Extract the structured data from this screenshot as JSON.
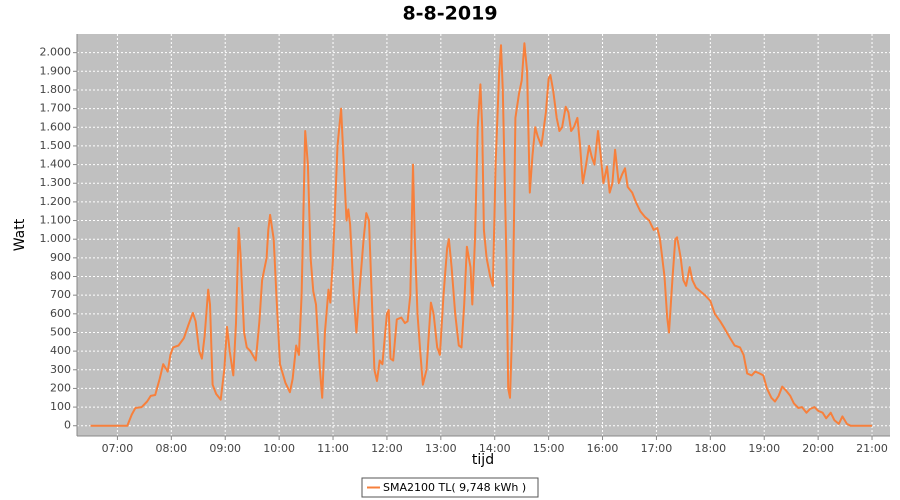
{
  "chart_data": {
    "type": "line",
    "title": "8-8-2019",
    "xlabel": "tijd",
    "ylabel": "Watt",
    "x": [
      "06:30",
      "07:11",
      "07:16",
      "07:20",
      "07:27",
      "07:33",
      "07:37",
      "07:42",
      "07:47",
      "07:51",
      "07:56",
      "07:59",
      "08:02",
      "08:08",
      "08:14",
      "08:19",
      "08:24",
      "08:27",
      "08:31",
      "08:34",
      "08:37",
      "08:41",
      "08:43",
      "08:46",
      "08:50",
      "08:55",
      "08:59",
      "09:02",
      "09:05",
      "09:09",
      "09:12",
      "09:15",
      "09:17",
      "09:21",
      "09:24",
      "09:28",
      "09:34",
      "09:38",
      "09:41",
      "09:46",
      "09:48",
      "09:50",
      "09:54",
      "09:57",
      "10:01",
      "10:07",
      "10:12",
      "10:15",
      "10:19",
      "10:22",
      "10:25",
      "10:29",
      "10:32",
      "10:35",
      "10:38",
      "10:41",
      "10:45",
      "10:48",
      "10:51",
      "10:55",
      "10:57",
      "11:00",
      "11:05",
      "11:09",
      "11:12",
      "11:15",
      "11:17",
      "11:19",
      "11:23",
      "11:26",
      "11:29",
      "11:34",
      "11:37",
      "11:40",
      "11:43",
      "11:46",
      "11:49",
      "11:52",
      "11:55",
      "12:00",
      "12:02",
      "12:04",
      "12:07",
      "12:11",
      "12:16",
      "12:20",
      "12:23",
      "12:26",
      "12:29",
      "12:31",
      "12:34",
      "12:37",
      "12:40",
      "12:44",
      "12:49",
      "12:52",
      "12:56",
      "12:59",
      "13:03",
      "13:07",
      "13:09",
      "13:12",
      "13:16",
      "13:20",
      "13:23",
      "13:26",
      "13:29",
      "13:33",
      "13:35",
      "13:38",
      "13:41",
      "13:44",
      "13:46",
      "13:48",
      "13:51",
      "13:55",
      "13:58",
      "14:01",
      "14:05",
      "14:07",
      "14:09",
      "14:13",
      "14:15",
      "14:17",
      "14:20",
      "14:23",
      "14:27",
      "14:30",
      "14:33",
      "14:36",
      "14:39",
      "14:42",
      "14:45",
      "14:48",
      "14:52",
      "14:57",
      "15:00",
      "15:02",
      "15:05",
      "15:09",
      "15:12",
      "15:15",
      "15:19",
      "15:22",
      "15:25",
      "15:28",
      "15:32",
      "15:35",
      "15:38",
      "15:41",
      "15:45",
      "15:48",
      "15:51",
      "15:55",
      "15:58",
      "16:01",
      "16:05",
      "16:08",
      "16:11",
      "16:14",
      "16:18",
      "16:22",
      "16:25",
      "16:28",
      "16:33",
      "16:37",
      "16:42",
      "16:47",
      "16:52",
      "16:57",
      "17:01",
      "17:04",
      "17:09",
      "17:12",
      "17:14",
      "17:18",
      "17:21",
      "17:23",
      "17:27",
      "17:30",
      "17:33",
      "17:37",
      "17:40",
      "17:44",
      "17:49",
      "17:54",
      "18:00",
      "18:05",
      "18:11",
      "18:16",
      "18:22",
      "18:27",
      "18:33",
      "18:37",
      "18:41",
      "18:46",
      "18:50",
      "18:55",
      "18:59",
      "19:03",
      "19:08",
      "19:12",
      "19:16",
      "19:20",
      "19:24",
      "19:29",
      "19:33",
      "19:38",
      "19:42",
      "19:47",
      "19:51",
      "19:56",
      "20:00",
      "20:05",
      "20:09",
      "20:14",
      "20:18",
      "20:23",
      "20:27",
      "20:32",
      "20:36",
      "21:00"
    ],
    "series": [
      {
        "name": "SMA2100 TL( 9,748 kWh )",
        "color": "#f7803c",
        "values": [
          0,
          0,
          60,
          95,
          100,
          130,
          160,
          165,
          250,
          330,
          290,
          380,
          420,
          430,
          470,
          540,
          605,
          560,
          400,
          360,
          480,
          730,
          650,
          220,
          170,
          140,
          300,
          530,
          400,
          270,
          550,
          1060,
          920,
          500,
          420,
          400,
          350,
          560,
          780,
          900,
          1050,
          1130,
          1000,
          700,
          330,
          230,
          180,
          250,
          430,
          380,
          700,
          1580,
          1400,
          900,
          720,
          650,
          320,
          150,
          500,
          730,
          660,
          900,
          1500,
          1700,
          1400,
          1100,
          1160,
          1080,
          700,
          500,
          700,
          1000,
          1140,
          1100,
          700,
          300,
          240,
          350,
          330,
          600,
          620,
          360,
          350,
          570,
          580,
          550,
          560,
          700,
          1400,
          1000,
          600,
          400,
          220,
          300,
          660,
          600,
          420,
          380,
          700,
          950,
          1000,
          850,
          600,
          430,
          420,
          650,
          960,
          850,
          650,
          1000,
          1600,
          1830,
          1600,
          1050,
          900,
          800,
          750,
          1400,
          1900,
          2040,
          1800,
          900,
          200,
          150,
          600,
          1650,
          1780,
          1850,
          2050,
          1900,
          1250,
          1450,
          1600,
          1550,
          1500,
          1680,
          1860,
          1880,
          1800,
          1650,
          1580,
          1600,
          1710,
          1680,
          1580,
          1600,
          1650,
          1500,
          1300,
          1380,
          1500,
          1440,
          1400,
          1580,
          1450,
          1300,
          1390,
          1250,
          1300,
          1480,
          1300,
          1350,
          1380,
          1280,
          1250,
          1200,
          1150,
          1120,
          1100,
          1050,
          1060,
          1000,
          800,
          580,
          500,
          800,
          1000,
          1010,
          900,
          780,
          750,
          850,
          780,
          740,
          720,
          700,
          670,
          600,
          560,
          520,
          470,
          430,
          420,
          380,
          280,
          270,
          290,
          280,
          270,
          200,
          150,
          130,
          160,
          210,
          190,
          160,
          120,
          95,
          100,
          70,
          90,
          100,
          80,
          70,
          40,
          70,
          30,
          10,
          50,
          10,
          0,
          0
        ]
      }
    ],
    "xlim": [
      "06:15",
      "21:20"
    ],
    "xticks": [
      "07:00",
      "08:00",
      "09:00",
      "10:00",
      "11:00",
      "12:00",
      "13:00",
      "14:00",
      "15:00",
      "16:00",
      "17:00",
      "18:00",
      "19:00",
      "20:00",
      "21:00"
    ],
    "ylim": [
      -55,
      2100
    ],
    "yticks": [
      0,
      100,
      200,
      300,
      400,
      500,
      600,
      700,
      800,
      900,
      {
        "value": 1000,
        "label": "1.000"
      },
      {
        "value": 1100,
        "label": "1.100"
      },
      {
        "value": 1200,
        "label": "1.200"
      },
      {
        "value": 1300,
        "label": "1.300"
      },
      {
        "value": 1400,
        "label": "1.400"
      },
      {
        "value": 1500,
        "label": "1.500"
      },
      {
        "value": 1600,
        "label": "1.600"
      },
      {
        "value": 1700,
        "label": "1.700"
      },
      {
        "value": 1800,
        "label": "1.800"
      },
      {
        "value": 1900,
        "label": "1.900"
      },
      {
        "value": 2000,
        "label": "2.000"
      }
    ],
    "grid": true,
    "legend": "bottom"
  }
}
